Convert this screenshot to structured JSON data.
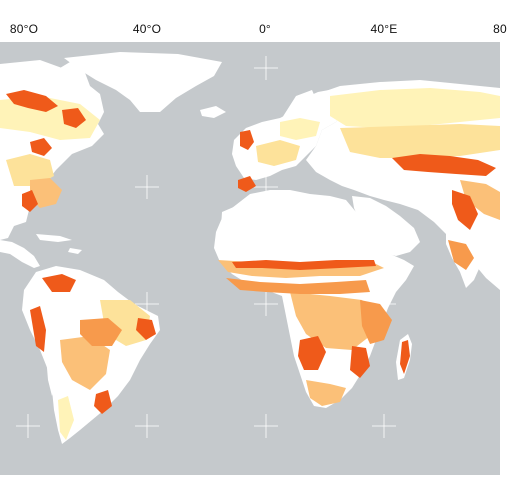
{
  "map": {
    "longitude_labels": [
      "80°O",
      "40°O",
      "0°",
      "40°E",
      "80"
    ],
    "colors": {
      "ocean": "#c5c9cc",
      "land_none": "#ffffff",
      "class_low": "#fff3b8",
      "class_mid_low": "#fde29a",
      "class_mid": "#fbc078",
      "class_high": "#f79a4c",
      "class_very_high": "#ef5a1a",
      "graticule": "#ffffff"
    }
  }
}
